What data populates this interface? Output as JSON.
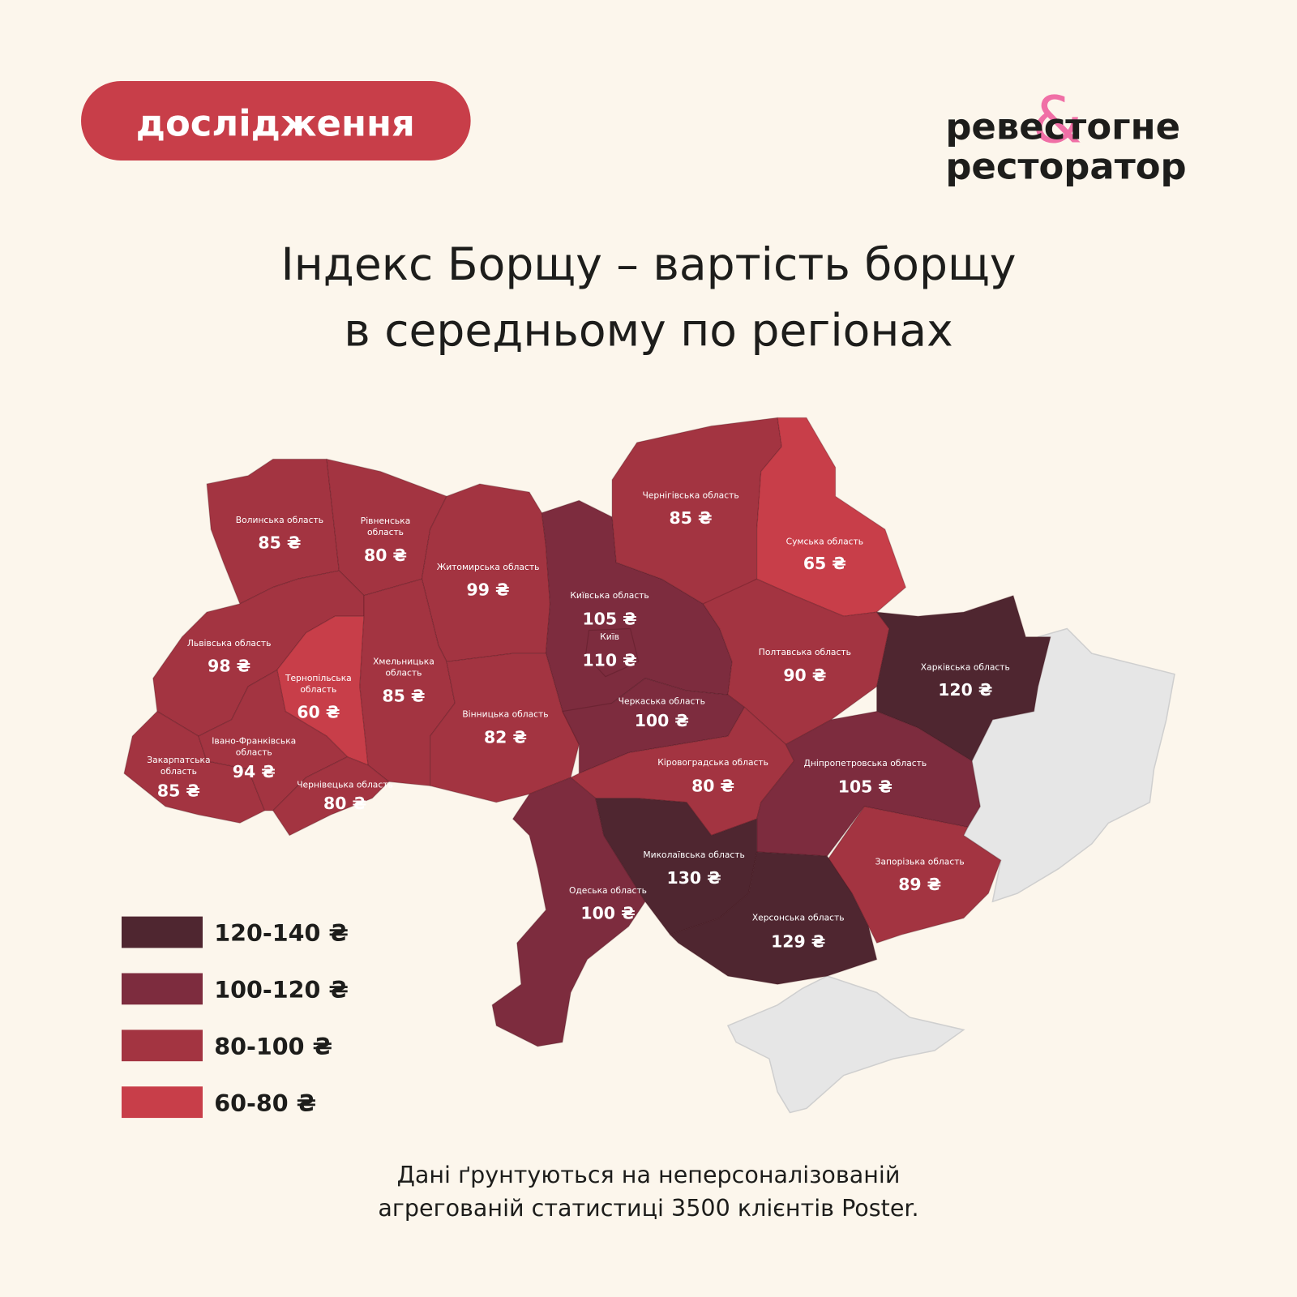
{
  "header": {
    "badge": "дослідження",
    "logo": {
      "line1a": "реве",
      "amp": "&",
      "line1b": "стогне",
      "line2": "ресторатор"
    }
  },
  "title": [
    "Індекс Борщу – вартість борщу",
    "в середньому по регіонах"
  ],
  "regions": [
    {
      "name": [
        "Волинська область"
      ],
      "price": "85 ₴",
      "color": "#a33441"
    },
    {
      "name": [
        "Рівненська",
        "область"
      ],
      "price": "80 ₴",
      "color": "#a33441"
    },
    {
      "name": [
        "Житомирська область"
      ],
      "price": "99 ₴",
      "color": "#a33441"
    },
    {
      "name": [
        "Київська область"
      ],
      "price": "105 ₴",
      "color": "#7d2c3e"
    },
    {
      "name": [
        "Київ"
      ],
      "price": "110 ₴",
      "color": "#7d2c3e"
    },
    {
      "name": [
        "Чернігівська область"
      ],
      "price": "85 ₴",
      "color": "#a33441"
    },
    {
      "name": [
        "Сумська область"
      ],
      "price": "65 ₴",
      "color": "#c83e49"
    },
    {
      "name": [
        "Полтавська область"
      ],
      "price": "90 ₴",
      "color": "#a33441"
    },
    {
      "name": [
        "Харківська область"
      ],
      "price": "120 ₴",
      "color": "#4f2630"
    },
    {
      "name": [
        "Львівська область"
      ],
      "price": "98 ₴",
      "color": "#a33441"
    },
    {
      "name": [
        "Тернопільська",
        "область"
      ],
      "price": "60 ₴",
      "color": "#c83e49"
    },
    {
      "name": [
        "Хмельницька",
        "область"
      ],
      "price": "85 ₴",
      "color": "#a33441"
    },
    {
      "name": [
        "Вінницька область"
      ],
      "price": "82 ₴",
      "color": "#a33441"
    },
    {
      "name": [
        "Закарпатська",
        "область"
      ],
      "price": "85 ₴",
      "color": "#a33441"
    },
    {
      "name": [
        "Івано-Франківська",
        "область"
      ],
      "price": "94 ₴",
      "color": "#a33441"
    },
    {
      "name": [
        "Чернівецька область"
      ],
      "price": "80 ₴",
      "color": "#a33441"
    },
    {
      "name": [
        "Черкаська область"
      ],
      "price": "100 ₴",
      "color": "#7d2c3e"
    },
    {
      "name": [
        "Кіровоградська область"
      ],
      "price": "80 ₴",
      "color": "#a33441"
    },
    {
      "name": [
        "Дніпропетровська область"
      ],
      "price": "105 ₴",
      "color": "#7d2c3e"
    },
    {
      "name": [
        "Запорізька область"
      ],
      "price": "89 ₴",
      "color": "#a33441"
    },
    {
      "name": [
        "Одеська область"
      ],
      "price": "100 ₴",
      "color": "#7d2c3e"
    },
    {
      "name": [
        "Миколаївська область"
      ],
      "price": "130 ₴",
      "color": "#4f2630"
    },
    {
      "name": [
        "Херсонська область"
      ],
      "price": "129 ₴",
      "color": "#4f2630"
    }
  ],
  "legend": [
    {
      "label": "120-140 ₴",
      "color": "#4f2630"
    },
    {
      "label": "100-120 ₴",
      "color": "#7d2c3e"
    },
    {
      "label": "80-100 ₴",
      "color": "#a33441"
    },
    {
      "label": "60-80 ₴",
      "color": "#c83e49"
    }
  ],
  "footnote": [
    "Дані ґрунтуються на неперсоналізованій",
    "агрегованій статистиці 3500 клієнтів Poster."
  ]
}
